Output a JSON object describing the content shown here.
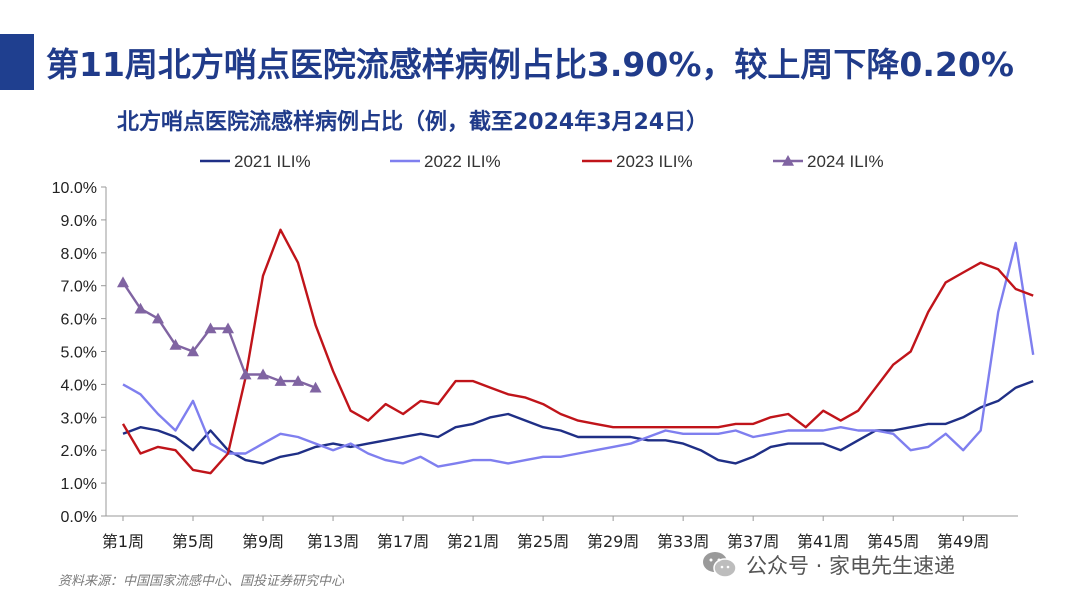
{
  "header": {
    "title": "第11周北方哨点医院流感样病例占比3.90%，较上周下降0.20%",
    "accent_color": "#1f3f8f"
  },
  "footer": {
    "source": "资料来源：中国国家流感中心、国投证券研究中心",
    "watermark": "公众号 · 家电先生速递",
    "watermark_icon": "wechat-icon"
  },
  "chart_data": {
    "type": "line",
    "title": "北方哨点医院流感样病例占比（例，截至2024年3月24日）",
    "xlabel": "",
    "ylabel": "",
    "ylim": [
      0,
      10
    ],
    "y_ticks": [
      "0.0%",
      "1.0%",
      "2.0%",
      "3.0%",
      "4.0%",
      "5.0%",
      "6.0%",
      "7.0%",
      "8.0%",
      "9.0%",
      "10.0%"
    ],
    "x_ticks": [
      {
        "week": 1,
        "label": "第1周"
      },
      {
        "week": 5,
        "label": "第5周"
      },
      {
        "week": 9,
        "label": "第9周"
      },
      {
        "week": 13,
        "label": "第13周"
      },
      {
        "week": 17,
        "label": "第17周"
      },
      {
        "week": 21,
        "label": "第21周"
      },
      {
        "week": 25,
        "label": "第25周"
      },
      {
        "week": 29,
        "label": "第29周"
      },
      {
        "week": 33,
        "label": "第33周"
      },
      {
        "week": 37,
        "label": "第37周"
      },
      {
        "week": 41,
        "label": "第41周"
      },
      {
        "week": 45,
        "label": "第45周"
      },
      {
        "week": 49,
        "label": "第49周"
      }
    ],
    "x_range": [
      1,
      52
    ],
    "legend_position": "top",
    "grid": false,
    "series": [
      {
        "name": "2021 ILI%",
        "color": "#1f2f86",
        "marker": "none",
        "values": [
          2.5,
          2.7,
          2.6,
          2.4,
          2.0,
          2.6,
          2.0,
          1.7,
          1.6,
          1.8,
          1.9,
          2.1,
          2.2,
          2.1,
          2.2,
          2.3,
          2.4,
          2.5,
          2.4,
          2.7,
          2.8,
          3.0,
          3.1,
          2.9,
          2.7,
          2.6,
          2.4,
          2.4,
          2.4,
          2.4,
          2.3,
          2.3,
          2.2,
          2.0,
          1.7,
          1.6,
          1.8,
          2.1,
          2.2,
          2.2,
          2.2,
          2.0,
          2.3,
          2.6,
          2.6,
          2.7,
          2.8,
          2.8,
          3.0,
          3.3,
          3.5,
          3.9,
          4.1
        ]
      },
      {
        "name": "2022 ILI%",
        "color": "#7f7fef",
        "marker": "none",
        "values": [
          4.0,
          3.7,
          3.1,
          2.6,
          3.5,
          2.2,
          1.9,
          1.9,
          2.2,
          2.5,
          2.4,
          2.2,
          2.0,
          2.2,
          1.9,
          1.7,
          1.6,
          1.8,
          1.5,
          1.6,
          1.7,
          1.7,
          1.6,
          1.7,
          1.8,
          1.8,
          1.9,
          2.0,
          2.1,
          2.2,
          2.4,
          2.6,
          2.5,
          2.5,
          2.5,
          2.6,
          2.4,
          2.5,
          2.6,
          2.6,
          2.6,
          2.7,
          2.6,
          2.6,
          2.5,
          2.0,
          2.1,
          2.5,
          2.0,
          2.6,
          6.2,
          8.3,
          4.9
        ]
      },
      {
        "name": "2023 ILI%",
        "color": "#c0141a",
        "marker": "none",
        "values": [
          2.8,
          1.9,
          2.1,
          2.0,
          1.4,
          1.3,
          1.9,
          4.2,
          7.3,
          8.7,
          7.7,
          5.8,
          4.4,
          3.2,
          2.9,
          3.4,
          3.1,
          3.5,
          3.4,
          4.1,
          4.1,
          3.9,
          3.7,
          3.6,
          3.4,
          3.1,
          2.9,
          2.8,
          2.7,
          2.7,
          2.7,
          2.7,
          2.7,
          2.7,
          2.7,
          2.8,
          2.8,
          3.0,
          3.1,
          2.7,
          3.2,
          2.9,
          3.2,
          3.9,
          4.6,
          5.0,
          6.2,
          7.1,
          7.4,
          7.7,
          7.5,
          6.9,
          6.7
        ]
      },
      {
        "name": "2024 ILI%",
        "color": "#8064a2",
        "marker": "triangle",
        "values": [
          7.1,
          6.3,
          6.0,
          5.2,
          5.0,
          5.7,
          5.7,
          4.3,
          4.3,
          4.1,
          4.1,
          3.9
        ]
      }
    ]
  }
}
